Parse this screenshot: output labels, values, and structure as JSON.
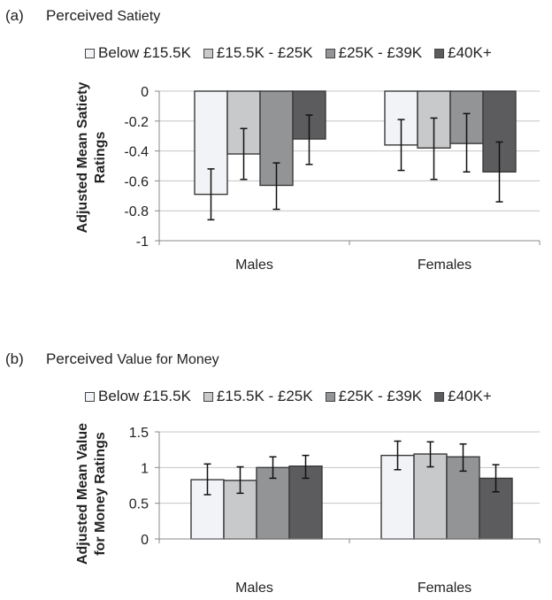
{
  "legend": [
    {
      "label": "Below £15.5K",
      "color": "#f2f3f6"
    },
    {
      "label": "£15.5K - £25K",
      "color": "#c8c9cb"
    },
    {
      "label": "£25K - £39K",
      "color": "#939496"
    },
    {
      "label": "£40K+",
      "color": "#5c5c5e"
    }
  ],
  "chart_data": [
    {
      "type": "bar",
      "panel_label": "(a)",
      "title_part1": "Perceived",
      "title_part2": "Satiety",
      "ylabel_line1": "Adjusted Mean Satiety",
      "ylabel_line2": "Ratings",
      "categories": [
        "Males",
        "Females"
      ],
      "ylim": [
        -1,
        0
      ],
      "yticks": [
        0,
        -0.2,
        -0.4,
        -0.6,
        -0.8,
        -1
      ],
      "ytick_labels": [
        "0",
        "-0.2",
        "-0.4",
        "-0.6",
        "-0.8",
        "-1"
      ],
      "grid": true,
      "legend_position": "top",
      "series": [
        {
          "name": "Below £15.5K",
          "values": [
            -0.69,
            -0.36
          ],
          "err_low": [
            -0.86,
            -0.53
          ],
          "err_high": [
            -0.52,
            -0.19
          ]
        },
        {
          "name": "£15.5K - £25K",
          "values": [
            -0.42,
            -0.38
          ],
          "err_low": [
            -0.59,
            -0.59
          ],
          "err_high": [
            -0.25,
            -0.18
          ]
        },
        {
          "name": "£25K - £39K",
          "values": [
            -0.63,
            -0.35
          ],
          "err_low": [
            -0.79,
            -0.54
          ],
          "err_high": [
            -0.48,
            -0.15
          ]
        },
        {
          "name": "£40K+",
          "values": [
            -0.32,
            -0.54
          ],
          "err_low": [
            -0.49,
            -0.74
          ],
          "err_high": [
            -0.16,
            -0.34
          ]
        }
      ]
    },
    {
      "type": "bar",
      "panel_label": "(b)",
      "title_part1": "Perceived",
      "title_part2": "Value for Money",
      "ylabel_line1": "Adjusted Mean Value",
      "ylabel_line2": "for Money Ratings",
      "categories": [
        "Males",
        "Females"
      ],
      "ylim": [
        0,
        1.5
      ],
      "yticks": [
        0,
        0.5,
        1,
        1.5
      ],
      "ytick_labels": [
        "0",
        "0.5",
        "1",
        "1.5"
      ],
      "grid": true,
      "legend_position": "top",
      "series": [
        {
          "name": "Below £15.5K",
          "values": [
            0.83,
            1.17
          ],
          "err_low": [
            0.62,
            0.97
          ],
          "err_high": [
            1.05,
            1.37
          ]
        },
        {
          "name": "£15.5K - £25K",
          "values": [
            0.82,
            1.19
          ],
          "err_low": [
            0.64,
            1.01
          ],
          "err_high": [
            1.01,
            1.36
          ]
        },
        {
          "name": "£25K - £39K",
          "values": [
            1.0,
            1.15
          ],
          "err_low": [
            0.85,
            0.95
          ],
          "err_high": [
            1.15,
            1.33
          ]
        },
        {
          "name": "£40K+",
          "values": [
            1.02,
            0.85
          ],
          "err_low": [
            0.85,
            0.66
          ],
          "err_high": [
            1.17,
            1.04
          ]
        }
      ]
    }
  ]
}
